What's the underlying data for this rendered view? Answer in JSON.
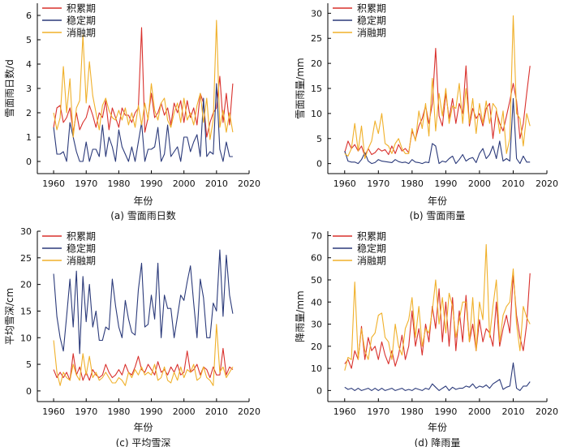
{
  "colors": {
    "accumulation": "#d9302c",
    "stable": "#2b3a7a",
    "melting": "#f0b02a",
    "axis": "#000000"
  },
  "legend_labels": [
    "积累期",
    "稳定期",
    "消融期"
  ],
  "chart_data": [
    {
      "type": "line",
      "caption": "(a) 雪面雨日数",
      "xlabel": "年份",
      "ylabel": "雪面雨日数/d",
      "xlim": [
        1955,
        2020
      ],
      "ylim": [
        -0.5,
        6.5
      ],
      "xticks": [
        1960,
        1970,
        1980,
        1990,
        2000,
        2010,
        2020
      ],
      "yticks": [
        0,
        1,
        2,
        3,
        4,
        5,
        6
      ],
      "legend_position": "top-left",
      "x": [
        1960,
        1961,
        1962,
        1963,
        1964,
        1965,
        1966,
        1967,
        1968,
        1969,
        1970,
        1971,
        1972,
        1973,
        1974,
        1975,
        1976,
        1977,
        1978,
        1979,
        1980,
        1981,
        1982,
        1983,
        1984,
        1985,
        1986,
        1987,
        1988,
        1989,
        1990,
        1991,
        1992,
        1993,
        1994,
        1995,
        1996,
        1997,
        1998,
        1999,
        2000,
        2001,
        2002,
        2003,
        2004,
        2005,
        2006,
        2007,
        2008,
        2009,
        2010,
        2011,
        2012,
        2013,
        2014,
        2015
      ],
      "series": [
        {
          "name": "积累期",
          "values": [
            1.4,
            2.2,
            2.3,
            1.6,
            1.8,
            2.2,
            1.2,
            2.0,
            1.3,
            1.6,
            1.8,
            2.3,
            1.9,
            1.4,
            2.0,
            1.8,
            2.5,
            1.3,
            2.2,
            1.8,
            1.4,
            2.2,
            1.9,
            1.9,
            1.6,
            2.0,
            2.2,
            5.5,
            1.2,
            1.8,
            2.8,
            1.8,
            2.0,
            2.4,
            1.9,
            2.2,
            1.5,
            2.4,
            2.0,
            2.5,
            1.6,
            2.5,
            1.8,
            2.2,
            1.5,
            2.8,
            2.4,
            1.0,
            1.6,
            2.0,
            2.2,
            3.5,
            1.6,
            2.8,
            1.5,
            3.2
          ]
        },
        {
          "name": "稳定期",
          "values": [
            1.4,
            0.3,
            0.3,
            0.4,
            0.0,
            1.6,
            1.0,
            0.4,
            0.0,
            0.0,
            0.8,
            0.0,
            0.5,
            0.5,
            0.2,
            1.5,
            0.2,
            1.0,
            0.6,
            0.0,
            1.3,
            0.6,
            0.3,
            0.0,
            0.6,
            0.0,
            0.8,
            1.6,
            0.0,
            0.5,
            0.5,
            0.6,
            1.4,
            0.0,
            0.3,
            1.5,
            0.2,
            0.4,
            0.6,
            0.0,
            1.0,
            1.0,
            0.4,
            0.8,
            1.1,
            0.2,
            2.6,
            0.2,
            0.4,
            0.3,
            3.2,
            0.5,
            0.0,
            0.8,
            0.2,
            0.2
          ]
        },
        {
          "name": "消融期",
          "values": [
            2.0,
            1.3,
            1.8,
            3.9,
            2.0,
            3.4,
            1.0,
            2.2,
            2.5,
            5.2,
            2.4,
            4.1,
            2.7,
            2.0,
            1.3,
            2.3,
            2.6,
            2.1,
            1.8,
            1.7,
            2.1,
            1.7,
            2.2,
            1.5,
            2.0,
            1.4,
            2.3,
            1.5,
            2.4,
            1.7,
            3.2,
            2.1,
            1.7,
            2.4,
            2.6,
            1.7,
            1.4,
            2.0,
            2.4,
            1.6,
            2.6,
            1.7,
            2.0,
            1.5,
            2.3,
            2.8,
            1.6,
            2.6,
            0.9,
            1.7,
            5.8,
            1.4,
            2.1,
            1.2,
            2.0,
            1.2
          ]
        }
      ]
    },
    {
      "type": "line",
      "caption": "(b) 雪面雨量",
      "xlabel": "年份",
      "ylabel": "雪面雨量/mm",
      "xlim": [
        1955,
        2020
      ],
      "ylim": [
        -2,
        32
      ],
      "xticks": [
        1960,
        1970,
        1980,
        1990,
        2000,
        2010,
        2020
      ],
      "yticks": [
        0,
        5,
        10,
        15,
        20,
        25,
        30
      ],
      "legend_position": "top-left",
      "x": [
        1960,
        1961,
        1962,
        1963,
        1964,
        1965,
        1966,
        1967,
        1968,
        1969,
        1970,
        1971,
        1972,
        1973,
        1974,
        1975,
        1976,
        1977,
        1978,
        1979,
        1980,
        1981,
        1982,
        1983,
        1984,
        1985,
        1986,
        1987,
        1988,
        1989,
        1990,
        1991,
        1992,
        1993,
        1994,
        1995,
        1996,
        1997,
        1998,
        1999,
        2000,
        2001,
        2002,
        2003,
        2004,
        2005,
        2006,
        2007,
        2008,
        2009,
        2010,
        2011,
        2012,
        2013,
        2014,
        2015
      ],
      "series": [
        {
          "name": "积累期",
          "values": [
            2.2,
            4.5,
            3.0,
            3.8,
            2.5,
            3.5,
            1.5,
            3.0,
            1.8,
            2.2,
            3.0,
            2.5,
            2.8,
            1.8,
            3.5,
            2.0,
            3.8,
            2.5,
            3.0,
            2.2,
            6.5,
            4.8,
            7.5,
            9.0,
            11.5,
            8.0,
            12.0,
            23.0,
            9.5,
            7.5,
            14.0,
            9.0,
            13.0,
            8.0,
            12.0,
            10.0,
            19.5,
            7.5,
            11.0,
            9.0,
            10.0,
            7.5,
            11.0,
            12.0,
            5.0,
            10.5,
            8.0,
            6.5,
            9.5,
            12.5,
            16.0,
            12.5,
            5.0,
            8.0,
            14.0,
            19.5
          ]
        },
        {
          "name": "稳定期",
          "values": [
            2.5,
            0.5,
            0.3,
            0.3,
            0.0,
            0.8,
            2.2,
            0.5,
            0.0,
            0.2,
            0.8,
            0.5,
            0.4,
            0.3,
            0.2,
            0.8,
            0.4,
            0.2,
            0.3,
            0.0,
            0.8,
            0.3,
            0.2,
            0.0,
            0.3,
            0.2,
            4.0,
            3.5,
            0.0,
            0.5,
            0.3,
            1.0,
            1.5,
            0.0,
            0.8,
            1.8,
            0.5,
            1.0,
            1.2,
            0.2,
            2.0,
            3.0,
            1.0,
            1.8,
            3.5,
            1.0,
            4.5,
            0.5,
            1.0,
            0.5,
            13.0,
            1.0,
            0.0,
            1.5,
            0.3,
            0.3
          ]
        },
        {
          "name": "消融期",
          "values": [
            2.0,
            1.5,
            3.0,
            8.0,
            2.5,
            7.5,
            1.0,
            3.0,
            4.5,
            8.5,
            6.0,
            10.0,
            4.0,
            3.5,
            2.0,
            4.0,
            5.0,
            3.0,
            2.0,
            2.0,
            7.0,
            4.5,
            10.5,
            7.0,
            12.0,
            5.5,
            17.0,
            6.5,
            14.0,
            9.5,
            15.0,
            8.0,
            11.5,
            11.0,
            16.0,
            8.0,
            15.0,
            8.0,
            13.0,
            6.0,
            12.0,
            8.0,
            12.5,
            8.0,
            12.0,
            11.0,
            6.0,
            10.5,
            2.0,
            5.0,
            29.5,
            10.0,
            9.0,
            3.5,
            10.0,
            7.5
          ]
        }
      ]
    },
    {
      "type": "line",
      "caption": "(c) 平均雪深",
      "xlabel": "年份",
      "ylabel": "平均雪深/cm",
      "xlim": [
        1955,
        2020
      ],
      "ylim": [
        -2,
        30
      ],
      "xticks": [
        1960,
        1970,
        1980,
        1990,
        2000,
        2010,
        2020
      ],
      "yticks": [
        0,
        5,
        10,
        15,
        20,
        25,
        30
      ],
      "legend_position": "top-left",
      "x": [
        1960,
        1961,
        1962,
        1963,
        1964,
        1965,
        1966,
        1967,
        1968,
        1969,
        1970,
        1971,
        1972,
        1973,
        1974,
        1975,
        1976,
        1977,
        1978,
        1979,
        1980,
        1981,
        1982,
        1983,
        1984,
        1985,
        1986,
        1987,
        1988,
        1989,
        1990,
        1991,
        1992,
        1993,
        1994,
        1995,
        1996,
        1997,
        1998,
        1999,
        2000,
        2001,
        2002,
        2003,
        2004,
        2005,
        2006,
        2007,
        2008,
        2009,
        2010,
        2011,
        2012,
        2013,
        2014,
        2015
      ],
      "series": [
        {
          "name": "积累期",
          "values": [
            4.0,
            2.5,
            3.5,
            2.5,
            3.5,
            2.0,
            7.0,
            3.0,
            4.5,
            2.0,
            3.5,
            2.0,
            4.0,
            3.0,
            2.5,
            3.0,
            5.0,
            3.5,
            2.5,
            3.0,
            4.0,
            3.0,
            5.0,
            3.5,
            3.0,
            4.5,
            6.5,
            4.0,
            3.5,
            5.0,
            4.0,
            3.0,
            5.5,
            3.5,
            4.0,
            3.0,
            4.5,
            3.5,
            5.0,
            3.0,
            3.5,
            7.5,
            3.5,
            4.0,
            5.0,
            3.0,
            4.5,
            4.0,
            2.5,
            4.5,
            3.0,
            3.0,
            8.0,
            3.0,
            4.5,
            4.0
          ]
        },
        {
          "name": "稳定期",
          "values": [
            22.0,
            14.0,
            10.0,
            7.5,
            14.0,
            21.0,
            12.0,
            22.5,
            7.0,
            21.5,
            13.0,
            20.0,
            12.0,
            15.0,
            9.5,
            9.5,
            12.0,
            11.5,
            21.0,
            16.0,
            12.0,
            10.0,
            17.0,
            13.5,
            11.0,
            10.5,
            19.0,
            24.0,
            12.0,
            12.5,
            18.0,
            13.5,
            24.0,
            10.0,
            18.0,
            15.5,
            15.5,
            10.0,
            14.0,
            18.0,
            17.0,
            20.5,
            23.5,
            16.5,
            10.0,
            21.0,
            17.5,
            10.0,
            10.0,
            16.5,
            15.0,
            26.5,
            14.0,
            25.5,
            18.0,
            14.5
          ]
        },
        {
          "name": "消融期",
          "values": [
            9.5,
            3.5,
            1.0,
            3.5,
            2.5,
            2.0,
            5.0,
            3.0,
            2.0,
            7.0,
            3.0,
            6.5,
            2.5,
            3.5,
            2.0,
            2.5,
            3.5,
            2.5,
            1.5,
            1.5,
            2.5,
            2.0,
            1.0,
            3.5,
            2.5,
            4.0,
            3.0,
            4.5,
            3.0,
            3.5,
            3.0,
            5.0,
            2.0,
            2.5,
            4.5,
            2.0,
            1.5,
            3.5,
            2.0,
            4.5,
            2.5,
            4.0,
            3.5,
            5.0,
            2.0,
            2.5,
            4.5,
            2.5,
            2.0,
            1.0,
            12.5,
            3.5,
            4.5,
            2.5,
            3.5,
            4.5
          ]
        }
      ]
    },
    {
      "type": "line",
      "caption": "(d) 降雨量",
      "xlabel": "年份",
      "ylabel": "降雨量/mm",
      "xlim": [
        1955,
        2020
      ],
      "ylim": [
        -5,
        72
      ],
      "xticks": [
        1960,
        1970,
        1980,
        1990,
        2000,
        2010,
        2020
      ],
      "yticks": [
        0,
        10,
        20,
        30,
        40,
        50,
        60,
        70
      ],
      "legend_position": "top-left",
      "x": [
        1960,
        1961,
        1962,
        1963,
        1964,
        1965,
        1966,
        1967,
        1968,
        1969,
        1970,
        1971,
        1972,
        1973,
        1974,
        1975,
        1976,
        1977,
        1978,
        1979,
        1980,
        1981,
        1982,
        1983,
        1984,
        1985,
        1986,
        1987,
        1988,
        1989,
        1990,
        1991,
        1992,
        1993,
        1994,
        1995,
        1996,
        1997,
        1998,
        1999,
        2000,
        2001,
        2002,
        2003,
        2004,
        2005,
        2006,
        2007,
        2008,
        2009,
        2010,
        2011,
        2012,
        2013,
        2014,
        2015
      ],
      "series": [
        {
          "name": "积累期",
          "values": [
            12.0,
            14.0,
            10.0,
            18.0,
            14.0,
            29.0,
            14.0,
            24.0,
            18.0,
            20.0,
            14.0,
            22.0,
            16.0,
            12.0,
            18.0,
            11.0,
            16.0,
            25.0,
            14.0,
            20.0,
            36.0,
            20.0,
            28.0,
            16.0,
            30.0,
            22.0,
            38.0,
            28.0,
            46.0,
            22.0,
            40.0,
            20.0,
            42.0,
            18.0,
            36.0,
            22.0,
            43.0,
            22.0,
            30.0,
            18.0,
            32.0,
            22.0,
            28.0,
            26.0,
            20.0,
            40.0,
            20.0,
            28.0,
            34.0,
            26.0,
            52.0,
            34.0,
            24.0,
            18.0,
            30.0,
            53.0
          ]
        },
        {
          "name": "稳定期",
          "values": [
            1.5,
            0.5,
            1.0,
            0.0,
            1.0,
            0.0,
            0.5,
            1.0,
            0.0,
            1.0,
            0.0,
            1.0,
            0.0,
            0.5,
            1.0,
            0.0,
            0.5,
            1.0,
            0.0,
            0.5,
            0.0,
            1.0,
            0.5,
            0.0,
            1.0,
            0.5,
            3.0,
            1.5,
            0.0,
            1.0,
            2.0,
            0.0,
            1.5,
            0.5,
            1.0,
            1.0,
            2.0,
            1.5,
            3.0,
            1.0,
            2.0,
            1.5,
            2.5,
            1.0,
            3.0,
            4.0,
            5.0,
            0.5,
            1.5,
            2.0,
            12.5,
            1.0,
            0.0,
            2.0,
            2.0,
            4.0
          ]
        },
        {
          "name": "消融期",
          "values": [
            9.0,
            15.0,
            14.0,
            49.0,
            14.0,
            28.0,
            18.0,
            14.0,
            24.0,
            26.0,
            34.0,
            35.0,
            24.0,
            22.0,
            14.0,
            30.0,
            20.0,
            16.0,
            28.0,
            32.0,
            42.0,
            24.0,
            38.0,
            20.0,
            28.0,
            26.0,
            36.0,
            50.0,
            30.0,
            42.0,
            26.0,
            44.0,
            38.0,
            24.0,
            32.0,
            40.0,
            40.0,
            22.0,
            42.0,
            18.0,
            40.0,
            32.0,
            66.0,
            24.0,
            38.0,
            50.0,
            22.0,
            34.0,
            38.0,
            40.0,
            55.0,
            30.0,
            18.0,
            38.0,
            33.0,
            30.0
          ]
        }
      ]
    }
  ]
}
